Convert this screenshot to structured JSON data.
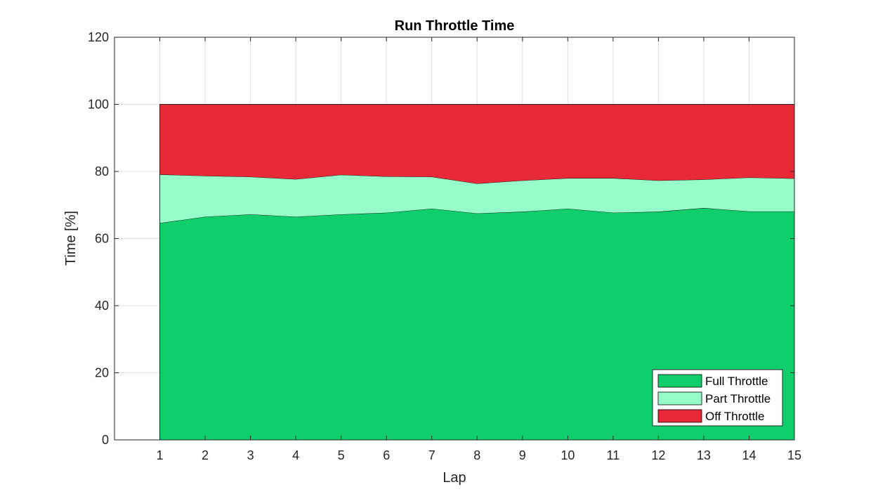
{
  "chart_data": {
    "type": "area",
    "title": "Run Throttle Time",
    "xlabel": "Lap",
    "ylabel": "Time [%]",
    "xlim": [
      0,
      15
    ],
    "ylim": [
      0,
      120
    ],
    "xticks": [
      1,
      2,
      3,
      4,
      5,
      6,
      7,
      8,
      9,
      10,
      11,
      12,
      13,
      14,
      15
    ],
    "yticks": [
      0,
      20,
      40,
      60,
      80,
      100,
      120
    ],
    "grid": true,
    "stacked": true,
    "legend_position": "bottom-right",
    "x": [
      1,
      2,
      3,
      4,
      5,
      6,
      7,
      8,
      9,
      10,
      11,
      12,
      13,
      14,
      15
    ],
    "series": [
      {
        "name": "Full Throttle",
        "color": "#0fce6b",
        "values": [
          64.6,
          66.5,
          67.2,
          66.5,
          67.2,
          67.7,
          68.9,
          67.5,
          68.0,
          68.9,
          67.7,
          68.0,
          69.1,
          68.1,
          68.1
        ]
      },
      {
        "name": "Part Throttle",
        "color": "#96fcc9",
        "values": [
          14.5,
          12.2,
          11.2,
          11.2,
          11.8,
          10.8,
          9.5,
          8.9,
          9.3,
          9.1,
          10.3,
          9.3,
          8.5,
          10.1,
          9.8
        ]
      },
      {
        "name": "Off Throttle",
        "color": "#e82937",
        "values": [
          20.9,
          21.3,
          21.6,
          22.3,
          21.0,
          21.5,
          21.6,
          23.6,
          22.7,
          22.0,
          22.0,
          22.7,
          22.4,
          21.8,
          22.1
        ]
      }
    ]
  }
}
